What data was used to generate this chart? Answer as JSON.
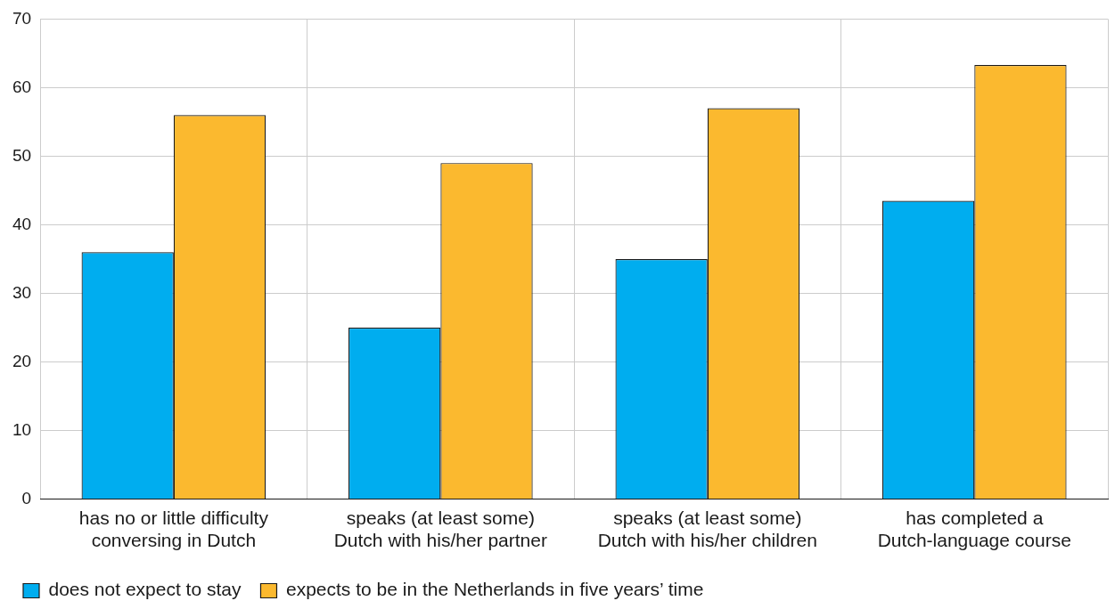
{
  "chart_data": {
    "type": "bar",
    "categories": [
      "has no or little difficulty conversing in Dutch",
      "speaks (at least some) Dutch with his/her partner",
      "speaks (at least some) Dutch with his/her children",
      "has completed a Dutch-language course"
    ],
    "series": [
      {
        "name": "does not expect to stay",
        "color": "#00adef",
        "values": [
          36,
          25,
          35,
          43.5
        ]
      },
      {
        "name": "expects to be in the Netherlands in five years’ time",
        "color": "#fbb92f",
        "values": [
          56,
          49,
          57,
          63.3
        ]
      }
    ],
    "ylim": [
      0,
      70
    ],
    "yticks": [
      0,
      10,
      20,
      30,
      40,
      50,
      60,
      70
    ],
    "grid": true,
    "legend": "bottom left"
  }
}
